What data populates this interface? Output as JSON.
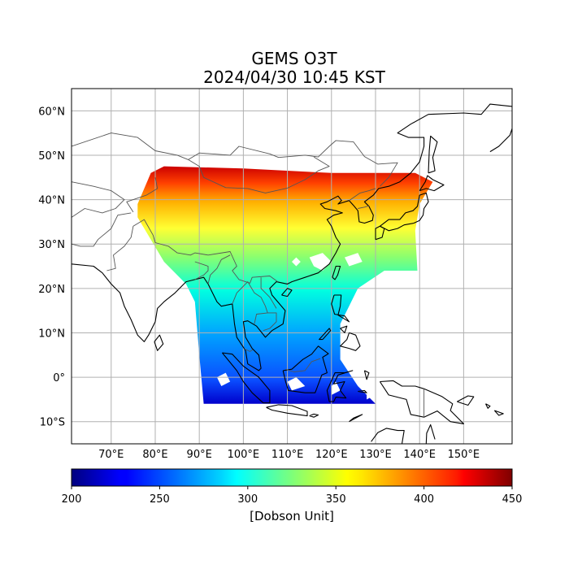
{
  "title": {
    "line1": "GEMS O3T",
    "line2": "2024/04/30 10:45 KST"
  },
  "map": {
    "lon_range": [
      61,
      161
    ],
    "lat_range": [
      -15,
      65
    ],
    "lat_ticks": [
      {
        "value": 60,
        "label": "60°N"
      },
      {
        "value": 50,
        "label": "50°N"
      },
      {
        "value": 40,
        "label": "40°N"
      },
      {
        "value": 30,
        "label": "30°N"
      },
      {
        "value": 20,
        "label": "20°N"
      },
      {
        "value": 10,
        "label": "10°N"
      },
      {
        "value": 0,
        "label": "0°"
      },
      {
        "value": -10,
        "label": "10°S"
      }
    ],
    "lon_ticks": [
      {
        "value": 70,
        "label": "70°E"
      },
      {
        "value": 80,
        "label": "80°E"
      },
      {
        "value": 90,
        "label": "90°E"
      },
      {
        "value": 100,
        "label": "100°E"
      },
      {
        "value": 110,
        "label": "110°E"
      },
      {
        "value": 120,
        "label": "120°E"
      },
      {
        "value": 130,
        "label": "130°E"
      },
      {
        "value": 140,
        "label": "140°E"
      },
      {
        "value": 150,
        "label": "150°E"
      }
    ],
    "grid": true
  },
  "colorbar": {
    "ticks": [
      "200",
      "250",
      "300",
      "350",
      "400",
      "450"
    ],
    "label": "[Dobson Unit]",
    "colormap": "jet",
    "range": [
      200,
      450
    ]
  },
  "colors": {
    "grid": "#b0b0b0",
    "coast": "#000000",
    "border": "#555555"
  }
}
